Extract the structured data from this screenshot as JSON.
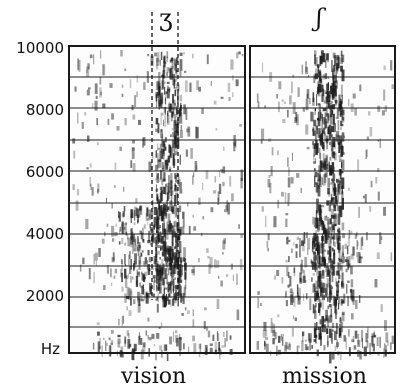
{
  "frequency_labels": [
    "10000",
    "8000",
    "6000",
    "4000",
    "2000",
    "Hz"
  ],
  "words": {
    "left": "vision",
    "right": "mission"
  },
  "phonetic_symbols": {
    "left": "ʒ",
    "right": "ʃ"
  },
  "colors": {
    "ink": "#1a1a1a",
    "background": "#fdfdfd"
  }
}
